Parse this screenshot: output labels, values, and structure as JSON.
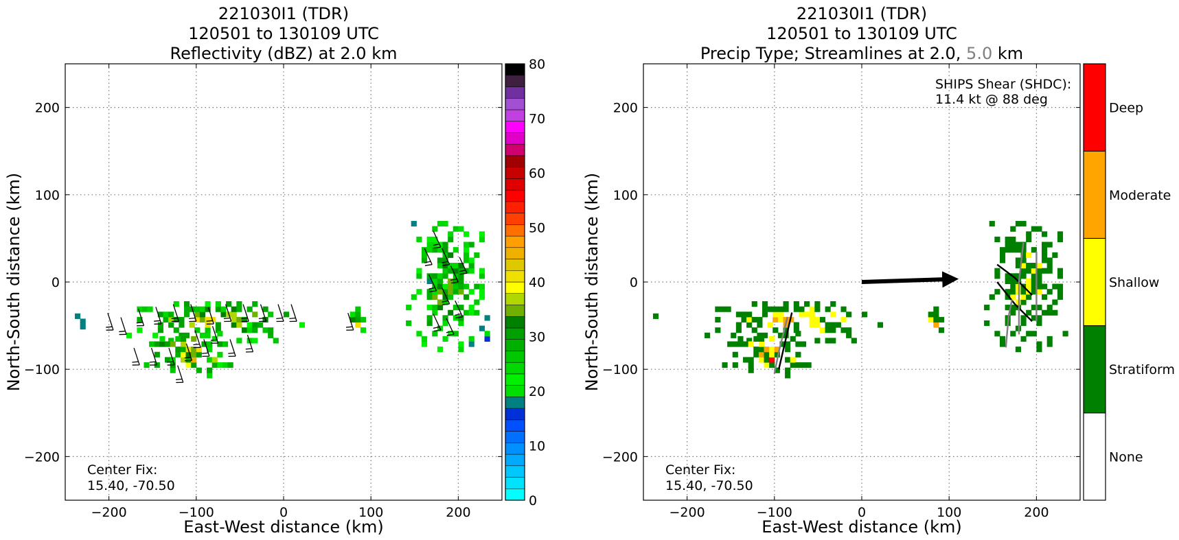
{
  "colors": {
    "dbz_scale": [
      "#00ffff",
      "#00e3ff",
      "#00c8ff",
      "#00abff",
      "#0090ff",
      "#0070ff",
      "#0050ff",
      "#0030d8",
      "#008080",
      "#00e000",
      "#00f000",
      "#00d800",
      "#00c800",
      "#00b000",
      "#00a000",
      "#008000",
      "#70b000",
      "#b0d800",
      "#ffff00",
      "#f0e000",
      "#e0c800",
      "#f0b000",
      "#ffa000",
      "#ff7000",
      "#ff4000",
      "#ff2000",
      "#ff0000",
      "#e00000",
      "#c80000",
      "#a00000",
      "#d0006e",
      "#e000c8",
      "#ff00ff",
      "#c040e0",
      "#a050d0",
      "#7030a0",
      "#402040",
      "#000000"
    ],
    "ptype": {
      "None": "#ffffff",
      "Stratiform": "#008000",
      "Shallow": "#ffff00",
      "Moderate": "#ffa500",
      "Deep": "#ff0000"
    },
    "stream_2km": "#000000",
    "stream_5km": "#808080"
  },
  "left_panel": {
    "title_line1": "221030I1 (TDR)",
    "title_line2": "120501 to 130109 UTC",
    "title_line3": "Reflectivity (dBZ) at 2.0 km",
    "xlabel": "East-West distance (km)",
    "ylabel": "North-South distance (km)",
    "center_fix_label": "Center Fix:",
    "center_fix_value": "15.40, -70.50",
    "colorbar_ticks": [
      "0",
      "10",
      "20",
      "30",
      "40",
      "50",
      "60",
      "70",
      "80"
    ]
  },
  "right_panel": {
    "title_line1": "221030I1 (TDR)",
    "title_line2": "120501 to 130109 UTC",
    "title_line3_a": "Precip Type; Streamlines at 2.0, ",
    "title_line3_b": "5.0",
    "title_line3_c": " km",
    "xlabel": "East-West distance (km)",
    "ylabel": "North-South distance (km)",
    "shear_line1": "SHIPS Shear (SHDC):",
    "shear_line2": "11.4 kt @ 88 deg",
    "center_fix_label": "Center Fix:",
    "center_fix_value": "15.40, -70.50",
    "colorbar_labels": [
      "None",
      "Stratiform",
      "Shallow",
      "Moderate",
      "Deep"
    ]
  },
  "chart_data": [
    {
      "type": "heatmap",
      "title": "221030I1 (TDR) 120501 to 130109 UTC Reflectivity (dBZ) at 2.0 km",
      "xlabel": "East-West distance (km)",
      "ylabel": "North-South distance (km)",
      "xlim": [
        -250,
        250
      ],
      "ylim": [
        -250,
        250
      ],
      "xticks": [
        -200,
        -100,
        0,
        100,
        200
      ],
      "yticks": [
        -200,
        -100,
        0,
        100,
        200
      ],
      "grid": true,
      "colorbar": {
        "label": "dBZ",
        "range": [
          0,
          80
        ],
        "ticks": [
          0,
          10,
          20,
          30,
          40,
          50,
          60,
          70,
          80
        ]
      },
      "echo_regions": [
        {
          "x": [
            -180,
            20
          ],
          "y": [
            -70,
            -25
          ],
          "dbz_typical": 25,
          "dbz_max": 45
        },
        {
          "x": [
            -160,
            -60
          ],
          "y": [
            -110,
            -60
          ],
          "dbz_typical": 25,
          "dbz_max": 50
        },
        {
          "x": [
            -245,
            -230
          ],
          "y": [
            -60,
            -40
          ],
          "dbz_typical": 15,
          "dbz_max": 20
        },
        {
          "x": [
            70,
            90
          ],
          "y": [
            -70,
            -30
          ],
          "dbz_typical": 20,
          "dbz_max": 45
        },
        {
          "x": [
            140,
            230
          ],
          "y": [
            -80,
            70
          ],
          "dbz_typical": 22,
          "dbz_max": 40
        }
      ],
      "wind_barbs_km": 2.0,
      "annotation": "Center Fix: 15.40, -70.50"
    },
    {
      "type": "heatmap",
      "title": "221030I1 (TDR) 120501 to 130109 UTC Precip Type; Streamlines at 2.0, 5.0 km",
      "xlabel": "East-West distance (km)",
      "ylabel": "North-South distance (km)",
      "xlim": [
        -250,
        250
      ],
      "ylim": [
        -250,
        250
      ],
      "xticks": [
        -200,
        -100,
        0,
        100,
        200
      ],
      "yticks": [
        -200,
        -100,
        0,
        100,
        200
      ],
      "grid": true,
      "categories": [
        "None",
        "Stratiform",
        "Shallow",
        "Moderate",
        "Deep"
      ],
      "shear_vector": {
        "from": [
          0,
          0
        ],
        "to": [
          100,
          3
        ],
        "magnitude_kt": 11.4,
        "direction_deg": 88
      },
      "streamline_levels_km": [
        2.0,
        5.0
      ],
      "annotations": [
        "SHIPS Shear (SHDC): 11.4 kt @ 88 deg",
        "Center Fix: 15.40, -70.50"
      ]
    }
  ]
}
